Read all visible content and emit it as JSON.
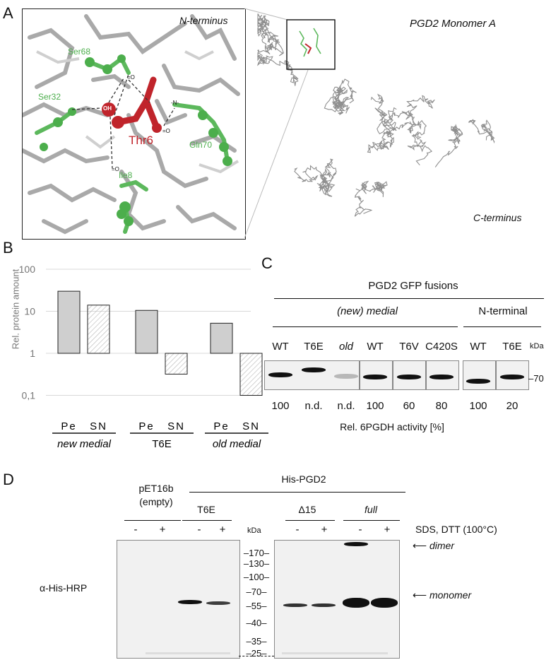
{
  "panel_a": {
    "label": "A",
    "zoom_labels": {
      "n_terminus": "N-terminus",
      "thr6": "Thr6",
      "ser68": "Ser68",
      "ser32": "Ser32",
      "gln70": "Gln70",
      "ile8": "Ile8",
      "oh": "OH",
      "o1": "=O",
      "o2": "=O",
      "o3": "=O",
      "n": "-N-"
    },
    "structure_title": "PGD2 Monomer A",
    "c_terminus": "C-terminus",
    "colors": {
      "highlight": "#c0242b",
      "residue": "#5cb85c",
      "backbone": "#9e9e9e"
    }
  },
  "panel_b": {
    "label": "B",
    "chart_data": {
      "type": "bar",
      "scale": "log",
      "ylabel": "Rel. protein amount",
      "yticks": [
        "100",
        "10",
        "1",
        "0,1"
      ],
      "ylim": [
        0.1,
        100
      ],
      "baseline": 1,
      "grid": true,
      "groups": [
        {
          "name": "new medial",
          "categories": [
            "Pe",
            "SN"
          ],
          "values": [
            30,
            14
          ]
        },
        {
          "name": "T6E",
          "categories": [
            "Pe",
            "SN"
          ],
          "values": [
            10.5,
            0.32
          ]
        },
        {
          "name": "old medial",
          "categories": [
            "Pe",
            "SN"
          ],
          "values": [
            5.2,
            0.1
          ]
        }
      ],
      "series_styles": {
        "Pe": "solid gray",
        "SN": "hatched"
      }
    }
  },
  "panel_c": {
    "label": "C",
    "title": "PGD2 GFP fusions",
    "group_medial": "(new) medial",
    "group_nterm": "N-terminal",
    "lanes": [
      "WT",
      "T6E",
      "old",
      "WT",
      "T6V",
      "C420S",
      "WT",
      "T6E"
    ],
    "kda_label": "kDa",
    "marker": "70",
    "activity": [
      "100",
      "n.d.",
      "n.d.",
      "100",
      "60",
      "80",
      "100",
      "20"
    ],
    "activity_label": "Rel. 6PGDH activity [%]"
  },
  "panel_d": {
    "label": "D",
    "pet": "pET16b",
    "pet_sub": "(empty)",
    "his_title": "His-PGD2",
    "t6e": "T6E",
    "delta15": "Δ15",
    "full": "full",
    "minus": "-",
    "plus": "+",
    "kda_label": "kDa",
    "sds_label": "SDS, DTT (100°C)",
    "antibody": "α-His-HRP",
    "markers": [
      "170",
      "130",
      "100",
      "70",
      "55",
      "40",
      "35",
      "25"
    ],
    "dimer": "dimer",
    "monomer": "monomer"
  }
}
